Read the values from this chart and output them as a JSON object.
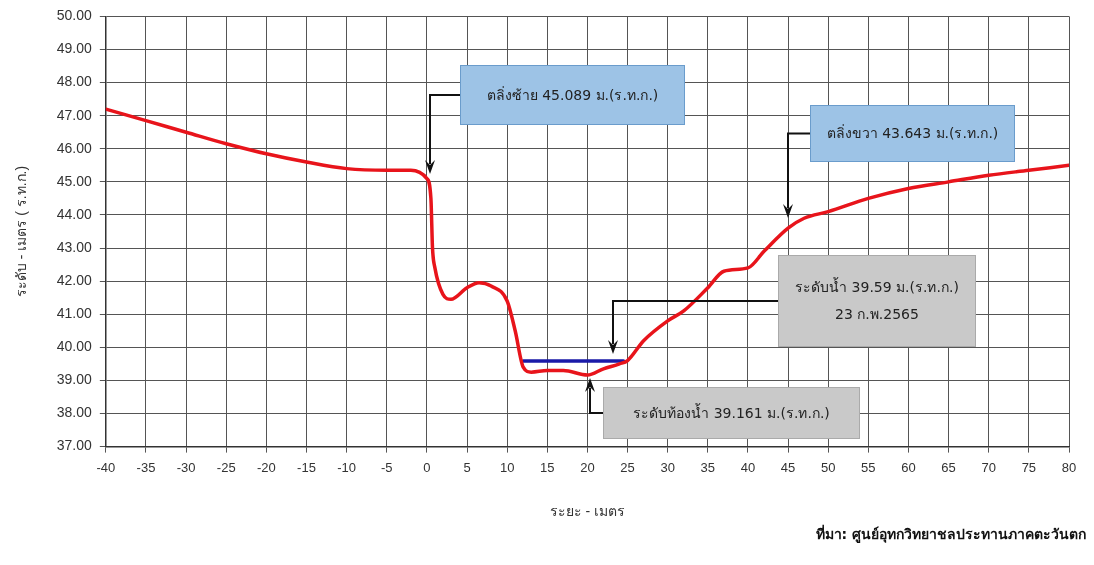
{
  "chart_data": {
    "type": "line",
    "xlabel": "ระยะ - เมตร",
    "ylabel": "ระดับ - เมตร ( ร.ท.ก.)",
    "xlim": [
      -40,
      80
    ],
    "xticks": [
      -40,
      -35,
      -30,
      -25,
      -20,
      -15,
      -10,
      -5,
      0,
      5,
      10,
      15,
      20,
      25,
      30,
      35,
      40,
      45,
      50,
      55,
      60,
      65,
      70,
      75,
      80
    ],
    "ylim": [
      37,
      50
    ],
    "yticks": [
      {
        "value": 37,
        "label": "37.00"
      },
      {
        "value": 38,
        "label": "38.00"
      },
      {
        "value": 39,
        "label": "39.00"
      },
      {
        "value": 40,
        "label": "40.00"
      },
      {
        "value": 41,
        "label": "41.00"
      },
      {
        "value": 42,
        "label": "42.00"
      },
      {
        "value": 43,
        "label": "43.00"
      },
      {
        "value": 44,
        "label": "44.00"
      },
      {
        "value": 45,
        "label": "45.00"
      },
      {
        "value": 46,
        "label": "46.00"
      },
      {
        "value": 47,
        "label": "47.00"
      },
      {
        "value": 48,
        "label": "48.00"
      },
      {
        "value": 49,
        "label": "49.00"
      },
      {
        "value": 50,
        "label": "50.00"
      }
    ],
    "grid": true,
    "legend": false,
    "marker": "none",
    "line_style": "solid",
    "series": [
      {
        "color": "#e8141b",
        "x": [
          -40,
          -35,
          -30,
          -25,
          -20,
          -15,
          -10,
          -5,
          -2,
          0,
          0.5,
          0.7,
          1,
          2,
          3,
          5,
          6.5,
          8,
          10,
          11,
          12,
          13,
          15,
          17,
          20,
          22,
          24,
          25,
          27,
          30,
          32,
          35,
          37,
          40,
          42,
          45,
          47,
          50,
          55,
          60,
          65,
          70,
          75,
          80
        ],
        "values": [
          47.2,
          46.85,
          46.5,
          46.15,
          45.85,
          45.6,
          45.4,
          45.35,
          45.35,
          45.1,
          44.5,
          43,
          42.4,
          41.6,
          41.45,
          41.8,
          41.95,
          41.85,
          41.4,
          40.5,
          39.4,
          39.25,
          39.3,
          39.3,
          39.16,
          39.35,
          39.5,
          39.6,
          40.2,
          40.8,
          41.1,
          41.8,
          42.3,
          42.4,
          42.9,
          43.6,
          43.9,
          44.1,
          44.5,
          44.8,
          45,
          45.2,
          45.35,
          45.5
        ]
      },
      {
        "color": "#1a1aa8",
        "x": [
          12,
          24.5
        ],
        "values": [
          39.59,
          39.59
        ]
      }
    ],
    "annotations": [
      "ตลิ่งซ้าย 45.089 ม.(ร.ท.ก.)",
      "ตลิ่งขวา 43.643 ม.(ร.ท.ก.)",
      "ระดับน้ำ 39.59 ม.(ร.ท.ก.)",
      "23 ก.พ.2565",
      "ระดับท้องน้ำ 39.161 ม.(ร.ท.ก.)",
      "ที่มา: ศูนย์อุทกวิทยาชลประทานภาคตะวันตก"
    ]
  }
}
